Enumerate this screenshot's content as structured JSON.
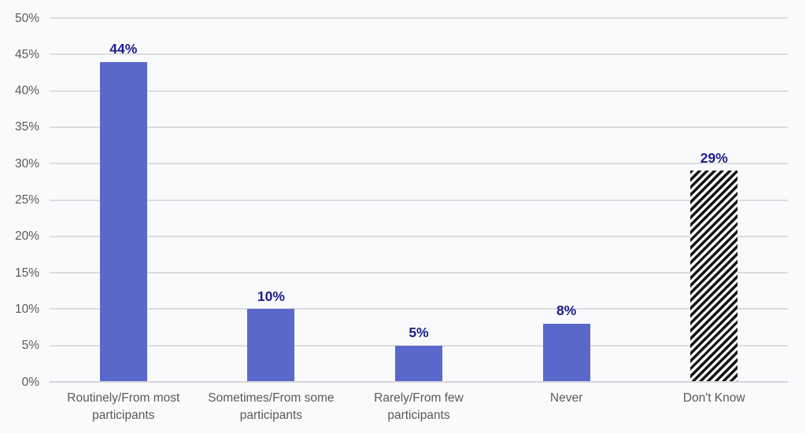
{
  "chart_data": {
    "type": "bar",
    "title": "",
    "xlabel": "",
    "ylabel": "",
    "categories": [
      "Routinely/From most participants",
      "Sometimes/From some participants",
      "Rarely/From few participants",
      "Never",
      "Don't Know"
    ],
    "values": [
      44,
      10,
      5,
      8,
      29
    ],
    "data_labels": [
      "44%",
      "10%",
      "5%",
      "8%",
      "29%"
    ],
    "bar_styles": [
      "solid",
      "solid",
      "solid",
      "solid",
      "hatched"
    ],
    "ylim": [
      0,
      50
    ],
    "y_tick_values": [
      0,
      5,
      10,
      15,
      20,
      25,
      30,
      35,
      40,
      45,
      50
    ],
    "y_tick_labels": [
      "0%",
      "5%",
      "10%",
      "15%",
      "20%",
      "25%",
      "30%",
      "35%",
      "40%",
      "45%",
      "50%"
    ],
    "grid": true,
    "legend": false,
    "colors": {
      "bar_fill": "#5A68CC",
      "hatch_foreground": "#151515",
      "hatch_background": "#FFFFFF",
      "data_label": "#1C1C8A",
      "axis_label": "#595959",
      "gridline": "#DDDDE0",
      "baseline": "#D6D6DA",
      "background": "#F9FAFC"
    }
  }
}
